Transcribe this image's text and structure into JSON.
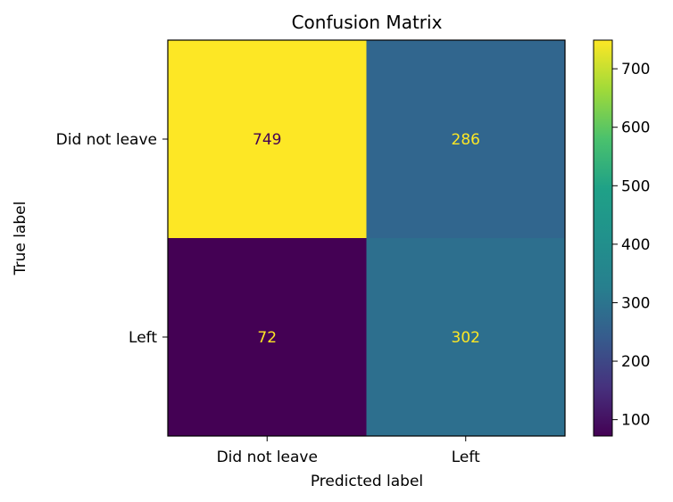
{
  "chart_data": {
    "type": "heatmap",
    "title": "Confusion Matrix",
    "xlabel": "Predicted label",
    "ylabel": "True label",
    "x_categories": [
      "Did not leave",
      "Left"
    ],
    "y_categories": [
      "Did not leave",
      "Left"
    ],
    "matrix": [
      [
        749,
        286
      ],
      [
        72,
        302
      ]
    ],
    "colormap": "viridis",
    "colorbar": {
      "min": 72,
      "max": 749,
      "ticks": [
        "100",
        "200",
        "300",
        "400",
        "500",
        "600",
        "700"
      ]
    },
    "cell_colors": [
      [
        "#fde725",
        "#31668e"
      ],
      [
        "#440154",
        "#2d6f8e"
      ]
    ],
    "text_colors": [
      [
        "#440154",
        "#fde725"
      ],
      [
        "#fde725",
        "#fde725"
      ]
    ]
  }
}
